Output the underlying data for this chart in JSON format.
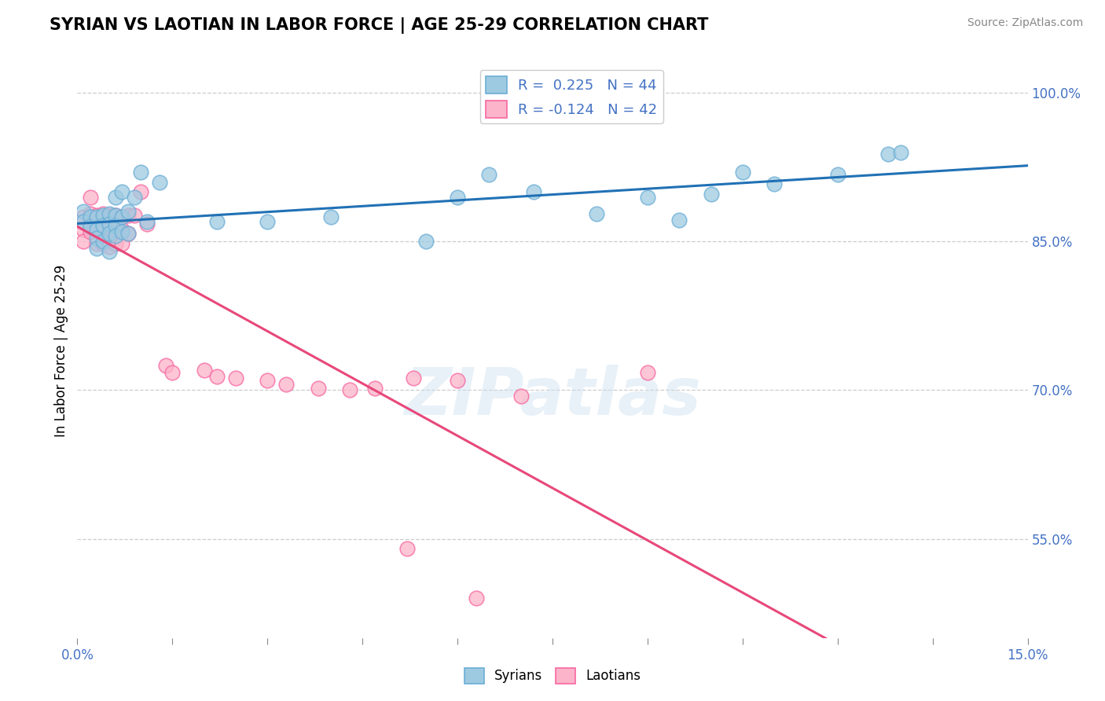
{
  "title": "SYRIAN VS LAOTIAN IN LABOR FORCE | AGE 25-29 CORRELATION CHART",
  "source": "Source: ZipAtlas.com",
  "ylabel": "In Labor Force | Age 25-29",
  "xlim": [
    0.0,
    0.15
  ],
  "ylim": [
    0.45,
    1.03
  ],
  "xticks": [
    0.0,
    0.015,
    0.03,
    0.045,
    0.06,
    0.075,
    0.09,
    0.105,
    0.12,
    0.135,
    0.15
  ],
  "xtick_labels_show": [
    "0.0%",
    "",
    "",
    "",
    "",
    "",
    "",
    "",
    "",
    "",
    "15.0%"
  ],
  "ytick_values": [
    0.55,
    0.7,
    0.85,
    1.0
  ],
  "ytick_labels": [
    "55.0%",
    "70.0%",
    "85.0%",
    "100.0%"
  ],
  "blue_color": "#9ecae1",
  "pink_color": "#fbb4c9",
  "blue_edge_color": "#6baed6",
  "pink_edge_color": "#f768a1",
  "blue_line_color": "#2171b5",
  "pink_line_color": "#e8487a",
  "R_blue": 0.225,
  "N_blue": 44,
  "R_pink": -0.124,
  "N_pink": 42,
  "watermark_text": "ZIPatlas",
  "syrians_x": [
    0.001,
    0.001,
    0.002,
    0.002,
    0.003,
    0.003,
    0.003,
    0.003,
    0.004,
    0.004,
    0.004,
    0.005,
    0.005,
    0.005,
    0.005,
    0.006,
    0.006,
    0.006,
    0.006,
    0.007,
    0.007,
    0.007,
    0.008,
    0.008,
    0.009,
    0.01,
    0.011,
    0.013,
    0.022,
    0.03,
    0.04,
    0.055,
    0.06,
    0.065,
    0.072,
    0.082,
    0.09,
    0.095,
    0.1,
    0.105,
    0.11,
    0.12,
    0.128,
    0.13
  ],
  "syrians_y": [
    0.88,
    0.87,
    0.875,
    0.865,
    0.875,
    0.862,
    0.853,
    0.843,
    0.876,
    0.866,
    0.85,
    0.878,
    0.868,
    0.858,
    0.84,
    0.876,
    0.866,
    0.856,
    0.895,
    0.9,
    0.875,
    0.86,
    0.88,
    0.858,
    0.895,
    0.92,
    0.87,
    0.91,
    0.87,
    0.87,
    0.875,
    0.85,
    0.895,
    0.918,
    0.9,
    0.878,
    0.895,
    0.872,
    0.898,
    0.92,
    0.908,
    0.918,
    0.938,
    0.94
  ],
  "laotians_x": [
    0.001,
    0.001,
    0.001,
    0.002,
    0.002,
    0.002,
    0.003,
    0.003,
    0.003,
    0.004,
    0.004,
    0.004,
    0.005,
    0.005,
    0.005,
    0.006,
    0.006,
    0.006,
    0.007,
    0.007,
    0.007,
    0.008,
    0.008,
    0.009,
    0.01,
    0.011,
    0.014,
    0.015,
    0.02,
    0.022,
    0.025,
    0.03,
    0.033,
    0.038,
    0.043,
    0.047,
    0.053,
    0.06,
    0.07,
    0.09,
    0.052,
    0.063
  ],
  "laotians_y": [
    0.875,
    0.862,
    0.85,
    0.895,
    0.878,
    0.86,
    0.876,
    0.862,
    0.848,
    0.878,
    0.862,
    0.848,
    0.876,
    0.862,
    0.845,
    0.876,
    0.862,
    0.848,
    0.875,
    0.862,
    0.848,
    0.876,
    0.858,
    0.876,
    0.9,
    0.868,
    0.725,
    0.718,
    0.72,
    0.714,
    0.712,
    0.71,
    0.706,
    0.702,
    0.7,
    0.702,
    0.712,
    0.71,
    0.694,
    0.718,
    0.54,
    0.49
  ]
}
